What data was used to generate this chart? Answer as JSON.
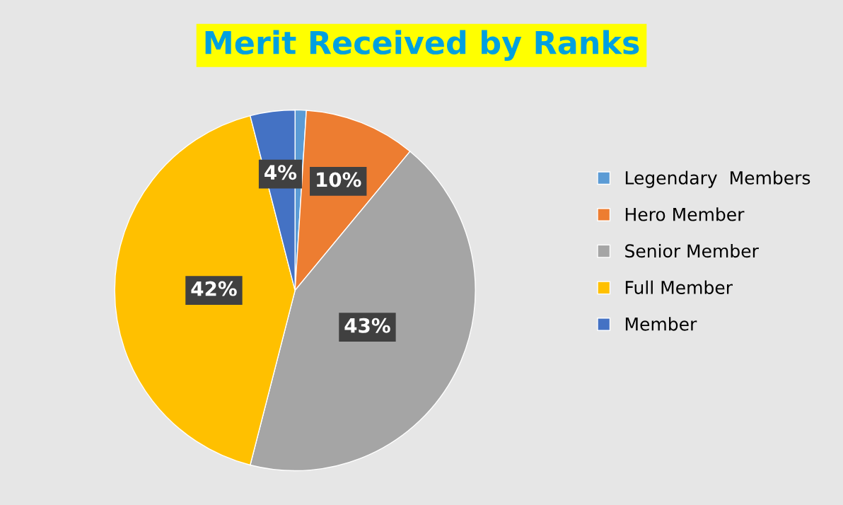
{
  "chart_data": {
    "type": "pie",
    "title": "Merit Received by Ranks",
    "categories": [
      "Legendary  Members",
      "Hero Member",
      "Senior Member",
      "Full Member",
      "Member"
    ],
    "values": [
      1,
      10,
      43,
      42,
      4
    ],
    "colors": [
      "#5b9bd5",
      "#ed7d31",
      "#a5a5a5",
      "#ffc000",
      "#4472c4"
    ],
    "value_labels": [
      null,
      "10%",
      "43%",
      "42%",
      "4%"
    ],
    "legend": "right"
  }
}
